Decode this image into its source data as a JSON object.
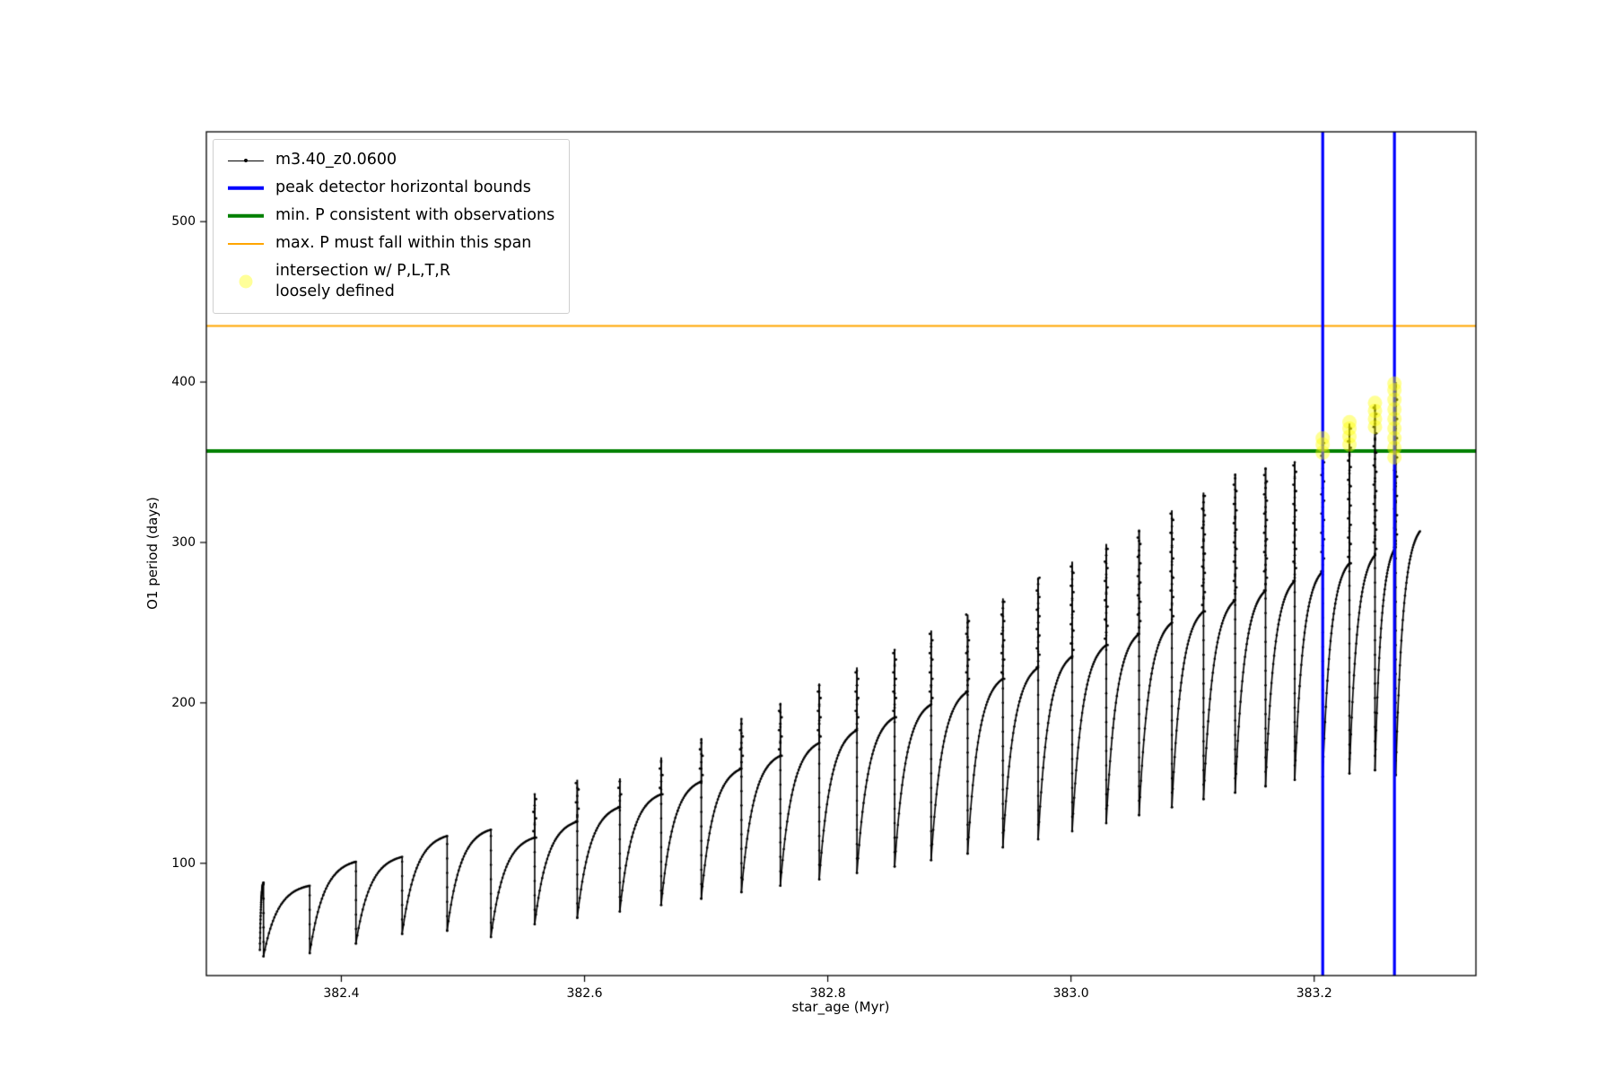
{
  "chart_data": {
    "type": "line",
    "title": "",
    "xlabel": "star_age (Myr)",
    "ylabel": "O1 period (days)",
    "xlim": [
      382.289,
      383.333
    ],
    "ylim": [
      30,
      556
    ],
    "xticks": [
      382.4,
      382.6,
      382.8,
      383.0,
      383.2
    ],
    "yticks": [
      100,
      200,
      300,
      400,
      500
    ],
    "grid": false,
    "background": "#ffffff",
    "legend": {
      "position": "upper-left",
      "entries": [
        {
          "label": "m3.40_z0.0600",
          "type": "line-with-dot-marker",
          "color": "#000000"
        },
        {
          "label": "peak detector horizontal bounds",
          "type": "thick-line",
          "color": "#0000ff"
        },
        {
          "label": "min. P consistent with observations",
          "type": "thick-line",
          "color": "#008000"
        },
        {
          "label": "max. P must fall within this span",
          "type": "line",
          "color": "#ffa500"
        },
        {
          "label": "intersection w/ P,L,T,R\nloosely defined",
          "type": "translucent-dot-marker",
          "color": "#ffff00"
        }
      ]
    },
    "series": [
      {
        "name": "m3.40_z0.0600",
        "color": "#000000",
        "marker": "point",
        "shape": "relaxation-oscillation sawtooth: each cycle rises steeply then saturates, ends in a narrow upward spike, then drops near-vertically to the next minimum",
        "cycles_format": [
          "x_start",
          "x_end",
          "y_min",
          "y_smooth_top",
          "y_spike_top"
        ],
        "cycles": [
          [
            382.333,
            382.336,
            46,
            88,
            88
          ],
          [
            382.336,
            382.374,
            42,
            86,
            86
          ],
          [
            382.374,
            382.412,
            44,
            101,
            101
          ],
          [
            382.412,
            382.45,
            50,
            104,
            104
          ],
          [
            382.45,
            382.487,
            56,
            117,
            117
          ],
          [
            382.487,
            382.523,
            58,
            121,
            121
          ],
          [
            382.523,
            382.559,
            54,
            116,
            143
          ],
          [
            382.559,
            382.594,
            62,
            126,
            152
          ],
          [
            382.594,
            382.629,
            66,
            135,
            153
          ],
          [
            382.629,
            382.663,
            70,
            143,
            166
          ],
          [
            382.663,
            382.696,
            74,
            151,
            178
          ],
          [
            382.696,
            382.729,
            78,
            159,
            190
          ],
          [
            382.729,
            382.761,
            82,
            167,
            200
          ],
          [
            382.761,
            382.793,
            86,
            175,
            212
          ],
          [
            382.793,
            382.824,
            90,
            183,
            222
          ],
          [
            382.824,
            382.855,
            94,
            191,
            233
          ],
          [
            382.855,
            382.885,
            98,
            199,
            245
          ],
          [
            382.885,
            382.915,
            102,
            207,
            255
          ],
          [
            382.915,
            382.944,
            106,
            215,
            265
          ],
          [
            382.944,
            382.973,
            110,
            222,
            278
          ],
          [
            382.973,
            383.001,
            115,
            229,
            288
          ],
          [
            383.001,
            383.029,
            120,
            236,
            299
          ],
          [
            383.029,
            383.056,
            125,
            243,
            308
          ],
          [
            383.056,
            383.083,
            130,
            250,
            320
          ],
          [
            383.083,
            383.109,
            135,
            257,
            331
          ],
          [
            383.109,
            383.135,
            140,
            264,
            343
          ],
          [
            383.135,
            383.16,
            144,
            270,
            346
          ],
          [
            383.16,
            383.184,
            148,
            276,
            350
          ],
          [
            383.184,
            383.207,
            152,
            282,
            362
          ],
          [
            383.207,
            383.229,
            154,
            287,
            374
          ],
          [
            383.229,
            383.25,
            156,
            292,
            386
          ],
          [
            383.25,
            383.267,
            158,
            297,
            400
          ],
          [
            383.267,
            383.287,
            155,
            307,
            307
          ]
        ]
      }
    ],
    "vlines": {
      "label": "peak detector horizontal bounds",
      "color": "#0000ff",
      "x": [
        383.207,
        383.266
      ],
      "linewidth": 3.2
    },
    "hlines": [
      {
        "label": "min. P consistent with observations",
        "color": "#008000",
        "y": 357,
        "linewidth": 4
      },
      {
        "label": "max. P must fall within this span",
        "color": "#ffa500",
        "y": 435,
        "linewidth": 2
      }
    ],
    "intersections": {
      "label": "intersection w/ P,L,T,R loosely defined",
      "color": "#ffff00",
      "alpha": 0.42,
      "points": [
        [
          383.207,
          356
        ],
        [
          383.207,
          361
        ],
        [
          383.207,
          365
        ],
        [
          383.229,
          361
        ],
        [
          383.229,
          366
        ],
        [
          383.229,
          371
        ],
        [
          383.229,
          375
        ],
        [
          383.25,
          372
        ],
        [
          383.25,
          377
        ],
        [
          383.25,
          382
        ],
        [
          383.25,
          387
        ],
        [
          383.266,
          353
        ],
        [
          383.266,
          359
        ],
        [
          383.266,
          365
        ],
        [
          383.266,
          371
        ],
        [
          383.266,
          377
        ],
        [
          383.266,
          383
        ],
        [
          383.266,
          389
        ],
        [
          383.266,
          395
        ],
        [
          383.266,
          399
        ]
      ]
    }
  }
}
